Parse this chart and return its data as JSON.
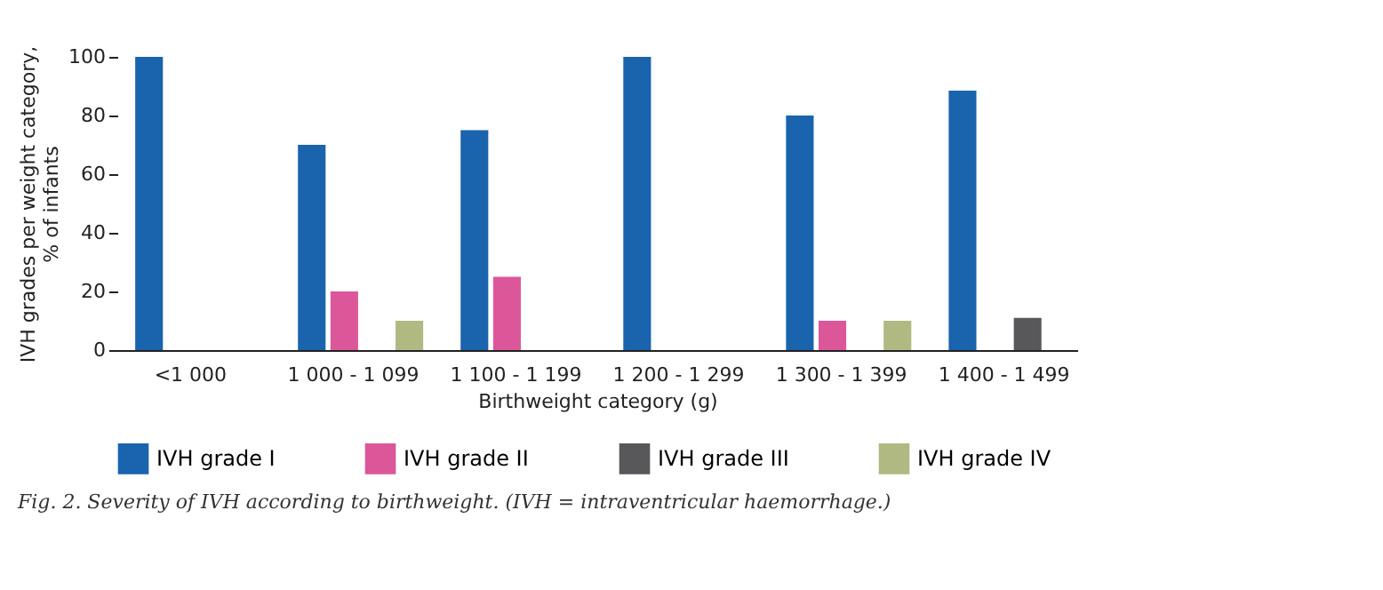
{
  "chart_data": {
    "type": "bar",
    "categories": [
      "<1 000",
      "1 000 - 1 099",
      "1 100 - 1 199",
      "1 200 - 1 299",
      "1 300 - 1 399",
      "1 400 - 1 499"
    ],
    "series": [
      {
        "name": "IVH grade I",
        "color": "#1a63ad",
        "values": [
          100,
          70,
          75,
          100,
          80,
          88.5
        ]
      },
      {
        "name": "IVH grade II",
        "color": "#db579a",
        "values": [
          null,
          20,
          25,
          null,
          10,
          null
        ]
      },
      {
        "name": "IVH grade III",
        "color": "#58585a",
        "values": [
          null,
          null,
          null,
          null,
          null,
          11
        ]
      },
      {
        "name": "IVH grade IV",
        "color": "#b0b982",
        "values": [
          null,
          10,
          null,
          null,
          10,
          null
        ]
      }
    ],
    "xlabel": "Birthweight category (g)",
    "ylabel": "IVH grades per weight category, % of infants",
    "ylim": [
      0,
      100
    ],
    "yticks": [
      0,
      20,
      40,
      60,
      80,
      100
    ],
    "grid": false,
    "legend": "bottom",
    "annotations": [
      "Fig. 2. Severity of IVH according to birthweight. (IVH = intraventricular haemorrhage.)"
    ]
  }
}
